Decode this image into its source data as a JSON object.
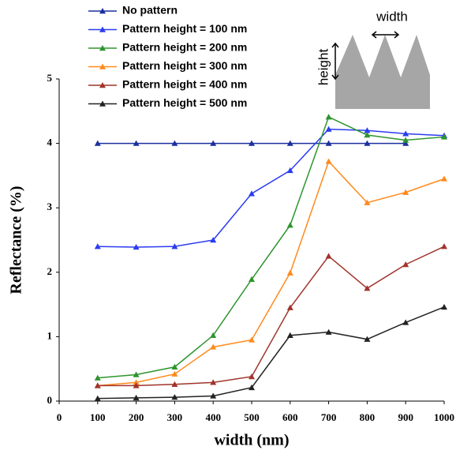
{
  "chart_data": {
    "type": "line",
    "x": [
      100,
      200,
      300,
      400,
      500,
      600,
      700,
      800,
      900,
      1000
    ],
    "series": [
      {
        "name": "No pattern",
        "color": "#1b2f9e",
        "values": [
          4.0,
          4.0,
          4.0,
          4.0,
          4.0,
          4.0,
          4.0,
          4.0,
          4.0,
          null
        ]
      },
      {
        "name": "Pattern height = 100 nm",
        "color": "#2b3cf0",
        "values": [
          2.4,
          2.39,
          2.4,
          2.5,
          3.22,
          3.58,
          4.22,
          4.2,
          4.15,
          4.12
        ]
      },
      {
        "name": "Pattern height = 200 nm",
        "color": "#2e952e",
        "values": [
          0.36,
          0.41,
          0.53,
          1.02,
          1.89,
          2.73,
          4.41,
          4.13,
          4.05,
          4.1
        ]
      },
      {
        "name": "Pattern height = 300 nm",
        "color": "#ff8a1c",
        "values": [
          0.24,
          0.29,
          0.42,
          0.84,
          0.95,
          1.99,
          3.72,
          3.08,
          3.24,
          3.45
        ]
      },
      {
        "name": "Pattern height = 400 nm",
        "color": "#a0342c",
        "values": [
          0.24,
          0.24,
          0.26,
          0.29,
          0.38,
          1.45,
          2.25,
          1.75,
          2.12,
          2.4
        ]
      },
      {
        "name": "Pattern height = 500 nm",
        "color": "#222222",
        "values": [
          0.04,
          0.05,
          0.06,
          0.08,
          0.21,
          1.02,
          1.07,
          0.96,
          1.22,
          1.46
        ]
      }
    ],
    "xlabel": "width (nm)",
    "ylabel": "Reflectance (%)",
    "xlim": [
      0,
      1000
    ],
    "xticks": [
      0,
      100,
      200,
      300,
      400,
      500,
      600,
      700,
      800,
      900,
      1000
    ],
    "ylim": [
      0,
      5
    ],
    "yticks": [
      0,
      1,
      2,
      3,
      4,
      5
    ],
    "inset": {
      "width_label": "width",
      "height_label": "height"
    }
  }
}
